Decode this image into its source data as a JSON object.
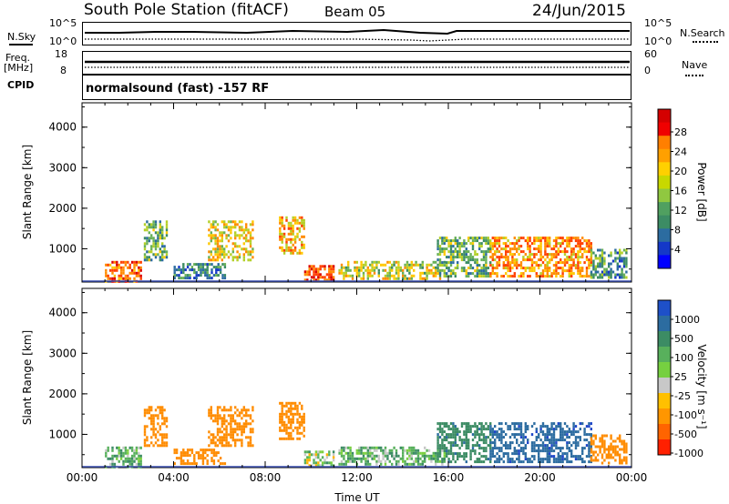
{
  "header": {
    "station": "South Pole Station (fitACF)",
    "beam": "Beam 05",
    "date": "24/Jun/2015"
  },
  "strips": {
    "nsky_label": "N.Sky",
    "nsky_tick_top": "10^5",
    "nsky_tick_bottom": "10^0",
    "nsearch_label": "N.Search",
    "nsearch_tick_top": "10^5",
    "nsearch_tick_bottom": "10^0",
    "freq_label": "Freq.",
    "freq_unit": "[MHz]",
    "freq_tick_top": "18",
    "freq_tick_bottom": "8",
    "nave_label": "Nave",
    "nave_tick_top": "60",
    "nave_tick_bottom": "0",
    "cpid_label": "CPID",
    "cpid_value": "normalsound (fast) -157 RF"
  },
  "colorbars": {
    "power": {
      "label": "Power [dB]",
      "ticks": [
        "28",
        "24",
        "20",
        "16",
        "12",
        "8",
        "4"
      ],
      "colors": [
        "#d40000",
        "#f00000",
        "#ff7f00",
        "#ffa000",
        "#ffd000",
        "#c8d800",
        "#90c840",
        "#50a060",
        "#3c8c64",
        "#2c6ca0",
        "#1438c8",
        "#0000ff"
      ]
    },
    "velocity": {
      "label": "Velocity [m s⁻¹]",
      "ticks": [
        "1000",
        "500",
        "100",
        "25",
        "-25",
        "-100",
        "-500",
        "-1000"
      ],
      "colors": [
        "#1e50c8",
        "#2c6ca0",
        "#3c8c64",
        "#58b05c",
        "#76d040",
        "#c8c8c8",
        "#ffc000",
        "#ff9600",
        "#ff6400",
        "#ff2000"
      ]
    }
  },
  "chart_data": [
    {
      "type": "heatmap",
      "title": "",
      "ylabel": "Slant Range [km]",
      "xlabel": "",
      "ylim": [
        180,
        4600
      ],
      "y_ticks": [
        "1000",
        "2000",
        "3000",
        "4000"
      ],
      "x_ticks": [
        "00:00",
        "04:00",
        "08:00",
        "12:00",
        "16:00",
        "20:00",
        "00:00"
      ],
      "quantity": "Power [dB]",
      "echo_regions": [
        {
          "t0": 1.0,
          "t1": 2.6,
          "r0": 200,
          "r1": 700,
          "value": 24
        },
        {
          "t0": 2.7,
          "t1": 3.7,
          "r0": 700,
          "r1": 1700,
          "value": 12
        },
        {
          "t0": 4.0,
          "t1": 6.2,
          "r0": 250,
          "r1": 650,
          "value": 8
        },
        {
          "t0": 5.5,
          "t1": 7.5,
          "r0": 700,
          "r1": 1700,
          "value": 18
        },
        {
          "t0": 8.6,
          "t1": 9.7,
          "r0": 900,
          "r1": 1800,
          "value": 20
        },
        {
          "t0": 9.7,
          "t1": 11.0,
          "r0": 200,
          "r1": 600,
          "value": 26
        },
        {
          "t0": 11.2,
          "t1": 15.8,
          "r0": 250,
          "r1": 700,
          "value": 16
        },
        {
          "t0": 15.5,
          "t1": 17.8,
          "r0": 300,
          "r1": 1300,
          "value": 12
        },
        {
          "t0": 17.8,
          "t1": 22.2,
          "r0": 300,
          "r1": 1300,
          "value": 22
        },
        {
          "t0": 22.2,
          "t1": 23.8,
          "r0": 300,
          "r1": 1000,
          "value": 10
        }
      ]
    },
    {
      "type": "heatmap",
      "title": "",
      "ylabel": "Slant Range [km]",
      "xlabel": "Time UT",
      "ylim": [
        180,
        4600
      ],
      "y_ticks": [
        "1000",
        "2000",
        "3000",
        "4000"
      ],
      "x_ticks": [
        "00:00",
        "04:00",
        "08:00",
        "12:00",
        "16:00",
        "20:00",
        "00:00"
      ],
      "quantity": "Velocity [m s⁻¹]",
      "echo_regions": [
        {
          "t0": 1.0,
          "t1": 2.6,
          "r0": 200,
          "r1": 700,
          "value": 100
        },
        {
          "t0": 2.7,
          "t1": 3.7,
          "r0": 700,
          "r1": 1700,
          "value": -250
        },
        {
          "t0": 4.0,
          "t1": 6.2,
          "r0": 250,
          "r1": 650,
          "value": -250
        },
        {
          "t0": 5.5,
          "t1": 7.5,
          "r0": 700,
          "r1": 1700,
          "value": -250
        },
        {
          "t0": 8.6,
          "t1": 9.7,
          "r0": 900,
          "r1": 1800,
          "value": -250
        },
        {
          "t0": 9.7,
          "t1": 11.0,
          "r0": 200,
          "r1": 600,
          "value": 50
        },
        {
          "t0": 11.2,
          "t1": 15.8,
          "r0": 250,
          "r1": 700,
          "value": 100
        },
        {
          "t0": 15.5,
          "t1": 17.8,
          "r0": 300,
          "r1": 1300,
          "value": 300
        },
        {
          "t0": 17.8,
          "t1": 22.2,
          "r0": 300,
          "r1": 1300,
          "value": 700
        },
        {
          "t0": 22.2,
          "t1": 23.8,
          "r0": 300,
          "r1": 1000,
          "value": -250
        }
      ]
    }
  ]
}
